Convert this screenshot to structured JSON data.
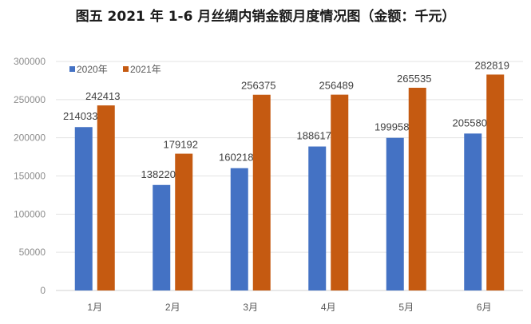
{
  "chart_data": {
    "type": "bar",
    "title": "图五  2021 年 1-6 月丝绸内销金额月度情况图（金额：千元）",
    "xlabel": "",
    "ylabel": "",
    "categories": [
      "1月",
      "2月",
      "3月",
      "4月",
      "5月",
      "6月"
    ],
    "series": [
      {
        "name": "2020年",
        "color": "#4472C4",
        "values": [
          214033,
          138220,
          160218,
          188617,
          199958,
          205580
        ]
      },
      {
        "name": "2021年",
        "color": "#C55A11",
        "values": [
          242413,
          179192,
          256375,
          256489,
          265535,
          282819
        ]
      }
    ],
    "ylim": [
      0,
      300000
    ],
    "yticks": [
      0,
      50000,
      100000,
      150000,
      200000,
      250000,
      300000
    ],
    "ytick_labels": [
      "0",
      "50000",
      "100000",
      "150000",
      "200000",
      "250000",
      "300000"
    ],
    "grid": true,
    "legend_position": "top-left inside",
    "data_labels": true
  }
}
